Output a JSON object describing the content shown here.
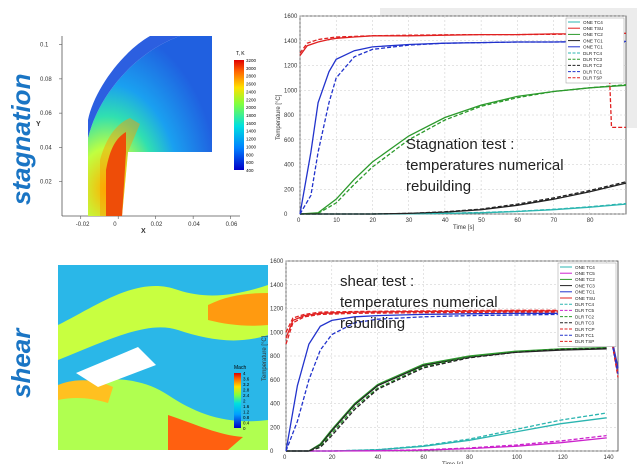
{
  "labels": {
    "stagnation": "stagnation",
    "shear": "shear"
  },
  "colors": {
    "side_label": "#1a75c4"
  },
  "contour_stag": {
    "legend_title": "T, K",
    "legend_levels": [
      "3200",
      "3000",
      "2800",
      "2600",
      "2400",
      "2200",
      "2000",
      "1800",
      "1600",
      "1400",
      "1200",
      "1000",
      "800",
      "600",
      "400"
    ]
  },
  "contour_shear": {
    "legend_title": "Mach",
    "legend_levels": [
      "4",
      "3.6",
      "3.2",
      "2.8",
      "2.4",
      "2",
      "1.6",
      "1.2",
      "0.8",
      "0.4",
      "0"
    ]
  },
  "chart_data": [
    {
      "type": "line",
      "title": "",
      "xlabel": "X",
      "ylabel": "Y",
      "xticks": [
        "-0.02",
        "0",
        "0.02",
        "0.04",
        "0.06"
      ],
      "yticks": [
        "0.1",
        "0.08",
        "0.06",
        "0.04",
        "0.02"
      ],
      "xlim": [
        -0.03,
        0.065
      ],
      "ylim": [
        0,
        0.105
      ],
      "series": [
        {
          "name": "",
          "x": [
            -0.018,
            -0.018,
            -0.006,
            -0.002,
            0.012,
            0.032,
            0.052,
            0.054,
            0.054,
            -0.006
          ],
          "y": [
            0.005,
            0.045,
            0.075,
            0.085,
            0.098,
            0.1,
            0.1,
            0.06,
            0.035,
            0.035
          ]
        }
      ]
    },
    {
      "type": "line",
      "xlabel": "Time [s]",
      "ylabel": "Temperature [°C]",
      "xlim": [
        0,
        90
      ],
      "ylim": [
        0,
        1600
      ],
      "xticks": [
        0,
        10,
        20,
        30,
        40,
        50,
        60,
        70,
        80
      ],
      "yticks": [
        0,
        200,
        400,
        600,
        800,
        1000,
        1200,
        1400,
        1600
      ],
      "grid": true,
      "legend_position": "top-right",
      "annotation": [
        "Stagnation test :",
        "temperatures numerical",
        "rebuilding"
      ],
      "series": [
        {
          "name": "ONE TC4",
          "color": "#2bb5b0",
          "dash": false,
          "x": [
            0,
            10,
            20,
            30,
            40,
            50,
            60,
            70,
            80,
            90
          ],
          "y": [
            0,
            0,
            0,
            2,
            5,
            10,
            20,
            35,
            55,
            80
          ]
        },
        {
          "name": "ONE TSU",
          "color": "#e02020",
          "dash": false,
          "x": [
            0,
            2,
            5,
            8,
            10,
            15,
            20,
            30,
            40,
            50,
            60,
            70,
            80,
            90
          ],
          "y": [
            1280,
            1360,
            1390,
            1410,
            1420,
            1430,
            1440,
            1440,
            1445,
            1450,
            1450,
            1455,
            1455,
            1460
          ]
        },
        {
          "name": "ONE TC2",
          "color": "#2c9a2c",
          "dash": false,
          "x": [
            0,
            5,
            10,
            15,
            20,
            30,
            40,
            50,
            60,
            70,
            80,
            90
          ],
          "y": [
            0,
            10,
            120,
            280,
            420,
            630,
            780,
            880,
            950,
            990,
            1020,
            1040
          ]
        },
        {
          "name": "ONE TC1",
          "color": "#222222",
          "dash": false,
          "x": [
            0,
            20,
            30,
            40,
            50,
            60,
            70,
            80,
            90
          ],
          "y": [
            0,
            0,
            5,
            15,
            35,
            70,
            120,
            180,
            250
          ]
        },
        {
          "name": "ONE TC1b",
          "color": "#2233cc",
          "dash": false,
          "x": [
            0,
            3,
            5,
            8,
            10,
            15,
            20,
            30,
            40,
            50,
            60,
            70,
            80,
            90
          ],
          "y": [
            0,
            500,
            900,
            1150,
            1250,
            1320,
            1350,
            1370,
            1380,
            1385,
            1390,
            1390,
            1395,
            1395
          ]
        },
        {
          "name": "DLR TC4",
          "color": "#2bb5b0",
          "dash": true,
          "x": [
            0,
            10,
            20,
            30,
            40,
            50,
            60,
            70,
            80,
            90
          ],
          "y": [
            0,
            0,
            0,
            2,
            6,
            12,
            22,
            38,
            58,
            85
          ]
        },
        {
          "name": "DLR TC3",
          "color": "#2c9a2c",
          "dash": true,
          "x": [
            0,
            5,
            10,
            15,
            20,
            30,
            40,
            50,
            60,
            70,
            80,
            90
          ],
          "y": [
            0,
            5,
            90,
            240,
            380,
            600,
            760,
            870,
            940,
            990,
            1020,
            1045
          ]
        },
        {
          "name": "DLR TC2",
          "color": "#222222",
          "dash": true,
          "x": [
            0,
            20,
            30,
            40,
            50,
            60,
            70,
            80,
            90
          ],
          "y": [
            0,
            0,
            5,
            18,
            40,
            80,
            130,
            190,
            260
          ]
        },
        {
          "name": "DLR TC1",
          "color": "#2233cc",
          "dash": true,
          "x": [
            0,
            3,
            5,
            8,
            10,
            15,
            20,
            30,
            40,
            50,
            60,
            70,
            80,
            90
          ],
          "y": [
            0,
            150,
            500,
            900,
            1100,
            1270,
            1330,
            1365,
            1380,
            1385,
            1390,
            1390,
            1390,
            1390
          ]
        },
        {
          "name": "DLR TSP",
          "color": "#e02020",
          "dash": true,
          "x": [
            0,
            2,
            5,
            10,
            20,
            30,
            40,
            50,
            60,
            70,
            80,
            85,
            86,
            90
          ],
          "y": [
            1300,
            1380,
            1410,
            1430,
            1440,
            1445,
            1448,
            1450,
            1450,
            1452,
            1455,
            1455,
            700,
            700
          ]
        }
      ]
    },
    {
      "type": "line",
      "xlabel": "Time [s]",
      "ylabel": "Temperature [°C]",
      "xlim": [
        0,
        145
      ],
      "ylim": [
        0,
        1600
      ],
      "xticks": [
        0,
        20,
        40,
        60,
        80,
        100,
        120,
        140
      ],
      "yticks": [
        0,
        200,
        400,
        600,
        800,
        1000,
        1200,
        1400,
        1600
      ],
      "grid": true,
      "legend_position": "top-right",
      "annotation": [
        "shear test :",
        "temperatures numerical",
        "rebuilding"
      ],
      "series": [
        {
          "name": "ONE TC4",
          "color": "#2bb5b0",
          "dash": false,
          "x": [
            0,
            20,
            40,
            60,
            80,
            100,
            120,
            140
          ],
          "y": [
            0,
            0,
            10,
            40,
            90,
            160,
            230,
            280
          ]
        },
        {
          "name": "ONE TC5",
          "color": "#cc22cc",
          "dash": false,
          "x": [
            0,
            20,
            40,
            60,
            80,
            100,
            120,
            140
          ],
          "y": [
            0,
            0,
            2,
            8,
            20,
            40,
            70,
            110
          ]
        },
        {
          "name": "ONE TC2",
          "color": "#2c9a2c",
          "dash": false,
          "x": [
            0,
            10,
            15,
            20,
            30,
            40,
            60,
            80,
            100,
            120,
            140
          ],
          "y": [
            0,
            0,
            60,
            180,
            400,
            560,
            730,
            800,
            840,
            860,
            870
          ]
        },
        {
          "name": "ONE TC3",
          "color": "#222222",
          "dash": false,
          "x": [
            0,
            10,
            15,
            20,
            30,
            40,
            60,
            80,
            100,
            120,
            140
          ],
          "y": [
            0,
            0,
            50,
            170,
            390,
            550,
            720,
            790,
            830,
            850,
            860
          ]
        },
        {
          "name": "ONE TC1",
          "color": "#2233cc",
          "dash": false,
          "x": [
            0,
            5,
            10,
            15,
            20,
            30,
            40,
            60,
            80,
            100,
            120,
            140,
            145
          ],
          "y": [
            0,
            550,
            900,
            1050,
            1100,
            1130,
            1140,
            1150,
            1155,
            1160,
            1160,
            1160,
            700
          ]
        },
        {
          "name": "ONE TSU",
          "color": "#e02020",
          "dash": false,
          "x": [
            0,
            3,
            8,
            15,
            30,
            60,
            100,
            140,
            145
          ],
          "y": [
            950,
            1100,
            1140,
            1160,
            1170,
            1175,
            1180,
            1180,
            650
          ]
        },
        {
          "name": "DLR TC4",
          "color": "#2bb5b0",
          "dash": true,
          "x": [
            0,
            20,
            40,
            60,
            80,
            100,
            120,
            140
          ],
          "y": [
            0,
            0,
            12,
            45,
            100,
            180,
            260,
            320
          ]
        },
        {
          "name": "DLR TC5",
          "color": "#cc22cc",
          "dash": true,
          "x": [
            0,
            20,
            40,
            60,
            80,
            100,
            120,
            140
          ],
          "y": [
            0,
            0,
            3,
            10,
            25,
            50,
            85,
            130
          ]
        },
        {
          "name": "DLR TC2",
          "color": "#2c9a2c",
          "dash": true,
          "x": [
            0,
            10,
            15,
            20,
            30,
            40,
            60,
            80,
            100,
            120,
            140
          ],
          "y": [
            0,
            0,
            40,
            150,
            370,
            530,
            710,
            790,
            835,
            860,
            870
          ]
        },
        {
          "name": "DLR TC3",
          "color": "#222222",
          "dash": true,
          "x": [
            0,
            10,
            15,
            20,
            30,
            40,
            60,
            80,
            100,
            120,
            140
          ],
          "y": [
            0,
            0,
            30,
            130,
            350,
            520,
            700,
            785,
            830,
            855,
            865
          ]
        },
        {
          "name": "DLR TCP",
          "color": "#e02020",
          "dash": true,
          "x": [
            0,
            3,
            8,
            15,
            30,
            60,
            100,
            140,
            145
          ],
          "y": [
            900,
            1080,
            1130,
            1150,
            1160,
            1165,
            1170,
            1170,
            620
          ]
        },
        {
          "name": "DLR TC1",
          "color": "#2233cc",
          "dash": true,
          "x": [
            0,
            5,
            10,
            15,
            20,
            30,
            40,
            60,
            80,
            100,
            120,
            140,
            145
          ],
          "y": [
            0,
            250,
            600,
            850,
            980,
            1080,
            1110,
            1130,
            1140,
            1145,
            1150,
            1150,
            650
          ]
        },
        {
          "name": "DLR TSP",
          "color": "#e02020",
          "dash": true,
          "x": [
            0,
            3,
            8,
            15,
            30,
            60,
            100,
            140
          ],
          "y": [
            1000,
            1120,
            1150,
            1170,
            1175,
            1180,
            1185,
            1185
          ]
        }
      ]
    }
  ]
}
